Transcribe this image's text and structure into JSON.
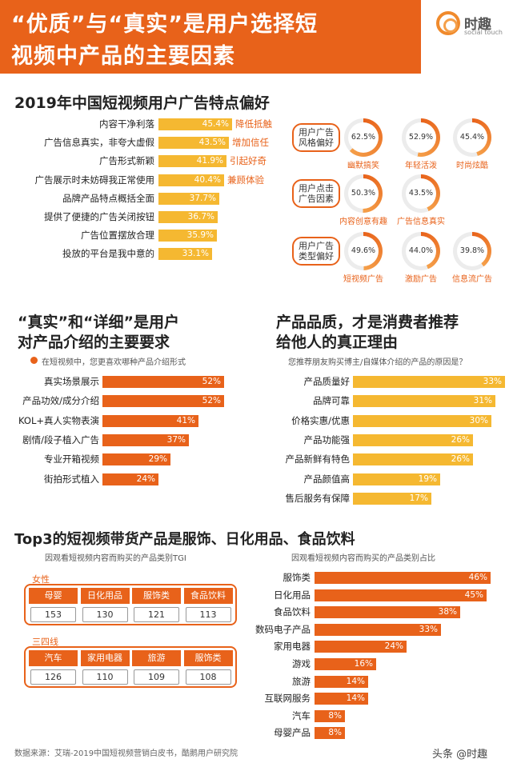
{
  "banner": {
    "line1": "“优质”与“真实”是用户选择短",
    "line2": "视频中产品的主要因素"
  },
  "logo": {
    "name": "时趣",
    "sub": "social touch"
  },
  "sec1": {
    "title": "2019年中国短视频用户广告特点偏好",
    "rows": [
      {
        "label": "内容干净利落",
        "value": 45.4,
        "text": "45.4%",
        "tag": "降低抵触"
      },
      {
        "label": "广告信息真实，非夸大虚假",
        "value": 43.5,
        "text": "43.5%",
        "tag": "增加信任"
      },
      {
        "label": "广告形式新颖",
        "value": 41.9,
        "text": "41.9%",
        "tag": "引起好奇"
      },
      {
        "label": "广告展示时未妨碍我正常使用",
        "value": 40.4,
        "text": "40.4%",
        "tag": "兼顾体验"
      },
      {
        "label": "品牌产品特点概括全面",
        "value": 37.7,
        "text": "37.7%",
        "tag": ""
      },
      {
        "label": "提供了便捷的广告关闭按钮",
        "value": 36.7,
        "text": "36.7%",
        "tag": ""
      },
      {
        "label": "广告位置摆放合理",
        "value": 35.9,
        "text": "35.9%",
        "tag": ""
      },
      {
        "label": "投放的平台是我中意的",
        "value": 33.1,
        "text": "33.1%",
        "tag": ""
      }
    ],
    "groups": [
      {
        "name": "用户广告风格偏好",
        "rings": [
          {
            "value": 62.5,
            "text": "62.5%",
            "label": "幽默搞笑"
          },
          {
            "value": 52.9,
            "text": "52.9%",
            "label": "年轻活泼"
          },
          {
            "value": 45.4,
            "text": "45.4%",
            "label": "时尚炫酷"
          }
        ]
      },
      {
        "name": "用户点击广告因素",
        "rings": [
          {
            "value": 50.3,
            "text": "50.3%",
            "label": "内容创意有趣"
          },
          {
            "value": 43.5,
            "text": "43.5%",
            "label": "广告信息真实"
          }
        ]
      },
      {
        "name": "用户广告类型偏好",
        "rings": [
          {
            "value": 49.6,
            "text": "49.6%",
            "label": "短视频广告"
          },
          {
            "value": 44.0,
            "text": "44.0%",
            "label": "激励广告"
          },
          {
            "value": 39.8,
            "text": "39.8%",
            "label": "信息流广告"
          }
        ]
      }
    ]
  },
  "sec2": {
    "title1": "“真实”和“详细”是用户",
    "title2": "对产品介绍的主要要求",
    "sub": "在短视频中，您更喜欢哪种产品介绍形式",
    "rows": [
      {
        "label": "真实场景展示",
        "value": 52,
        "text": "52%"
      },
      {
        "label": "产品功效/成分介绍",
        "value": 52,
        "text": "52%"
      },
      {
        "label": "KOL+真人实物表演",
        "value": 41,
        "text": "41%"
      },
      {
        "label": "剧情/段子植入广告",
        "value": 37,
        "text": "37%"
      },
      {
        "label": "专业开箱视频",
        "value": 29,
        "text": "29%"
      },
      {
        "label": "街拍形式植入",
        "value": 24,
        "text": "24%"
      }
    ]
  },
  "sec3": {
    "title1": "产品品质，才是消费者推荐",
    "title2": "给他人的真正理由",
    "sub": "您推荐朋友购买博主/自媒体介绍的产品的原因是？",
    "rows": [
      {
        "label": "产品质量好",
        "value": 33,
        "text": "33%"
      },
      {
        "label": "品牌可靠",
        "value": 31,
        "text": "31%"
      },
      {
        "label": "价格实惠/优惠",
        "value": 30,
        "text": "30%"
      },
      {
        "label": "产品功能强",
        "value": 26,
        "text": "26%"
      },
      {
        "label": "产品新鲜有特色",
        "value": 26,
        "text": "26%"
      },
      {
        "label": "产品颜值高",
        "value": 19,
        "text": "19%"
      },
      {
        "label": "售后服务有保障",
        "value": 17,
        "text": "17%"
      }
    ]
  },
  "sec4": {
    "title": "Top3的短视频带货产品是服饰、日化用品、食品饮料",
    "left_sub": "因观看短视频内容而购买的产品类别TGI",
    "right_sub": "因观看短视频内容而购买的产品类别占比",
    "female": {
      "label": "女性",
      "cats": [
        "母婴",
        "日化用品",
        "服饰类",
        "食品饮料"
      ],
      "vals": [
        "153",
        "130",
        "121",
        "113"
      ]
    },
    "tier": {
      "label": "三四线",
      "cats": [
        "汽车",
        "家用电器",
        "旅游",
        "服饰类"
      ],
      "vals": [
        "126",
        "110",
        "109",
        "108"
      ]
    },
    "rows": [
      {
        "label": "服饰类",
        "value": 46,
        "text": "46%"
      },
      {
        "label": "日化用品",
        "value": 45,
        "text": "45%"
      },
      {
        "label": "食品饮料",
        "value": 38,
        "text": "38%"
      },
      {
        "label": "数码电子产品",
        "value": 33,
        "text": "33%"
      },
      {
        "label": "家用电器",
        "value": 24,
        "text": "24%"
      },
      {
        "label": "游戏",
        "value": 16,
        "text": "16%"
      },
      {
        "label": "旅游",
        "value": 14,
        "text": "14%"
      },
      {
        "label": "互联网服务",
        "value": 14,
        "text": "14%"
      },
      {
        "label": "汽车",
        "value": 8,
        "text": "8%"
      },
      {
        "label": "母婴产品",
        "value": 8,
        "text": "8%"
      }
    ]
  },
  "footer": {
    "source": "数据来源：艾瑞-2019中国短视频营销白皮书，酷鹅用户研究院",
    "watermark": "头条 @时趣"
  },
  "chart_data": [
    {
      "type": "bar",
      "title": "2019年中国短视频用户广告特点偏好",
      "categories": [
        "内容干净利落",
        "广告信息真实，非夸大虚假",
        "广告形式新颖",
        "广告展示时未妨碍我正常使用",
        "品牌产品特点概括全面",
        "提供了便捷的广告关闭按钮",
        "广告位置摆放合理",
        "投放的平台是我中意的"
      ],
      "values": [
        45.4,
        43.5,
        41.9,
        40.4,
        37.7,
        36.7,
        35.9,
        33.1
      ]
    },
    {
      "type": "pie",
      "title": "用户广告风格偏好",
      "categories": [
        "幽默搞笑",
        "年轻活泼",
        "时尚炫酷"
      ],
      "values": [
        62.5,
        52.9,
        45.4
      ]
    },
    {
      "type": "pie",
      "title": "用户点击广告因素",
      "categories": [
        "内容创意有趣",
        "广告信息真实"
      ],
      "values": [
        50.3,
        43.5
      ]
    },
    {
      "type": "pie",
      "title": "用户广告类型偏好",
      "categories": [
        "短视频广告",
        "激励广告",
        "信息流广告"
      ],
      "values": [
        49.6,
        44.0,
        39.8
      ]
    },
    {
      "type": "bar",
      "title": "在短视频中，您更喜欢哪种产品介绍形式",
      "categories": [
        "真实场景展示",
        "产品功效/成分介绍",
        "KOL+真人实物表演",
        "剧情/段子植入广告",
        "专业开箱视频",
        "街拍形式植入"
      ],
      "values": [
        52,
        52,
        41,
        37,
        29,
        24
      ]
    },
    {
      "type": "bar",
      "title": "您推荐朋友购买博主/自媒体介绍的产品的原因是？",
      "categories": [
        "产品质量好",
        "品牌可靠",
        "价格实惠/优惠",
        "产品功能强",
        "产品新鲜有特色",
        "产品颜值高",
        "售后服务有保障"
      ],
      "values": [
        33,
        31,
        30,
        26,
        26,
        19,
        17
      ]
    },
    {
      "type": "table",
      "title": "因观看短视频内容而购买的产品类别TGI",
      "series": [
        {
          "name": "女性",
          "categories": [
            "母婴",
            "日化用品",
            "服饰类",
            "食品饮料"
          ],
          "values": [
            153,
            130,
            121,
            113
          ]
        },
        {
          "name": "三四线",
          "categories": [
            "汽车",
            "家用电器",
            "旅游",
            "服饰类"
          ],
          "values": [
            126,
            110,
            109,
            108
          ]
        }
      ]
    },
    {
      "type": "bar",
      "title": "因观看短视频内容而购买的产品类别占比",
      "categories": [
        "服饰类",
        "日化用品",
        "食品饮料",
        "数码电子产品",
        "家用电器",
        "游戏",
        "旅游",
        "互联网服务",
        "汽车",
        "母婴产品"
      ],
      "values": [
        46,
        45,
        38,
        33,
        24,
        16,
        14,
        14,
        8,
        8
      ]
    }
  ],
  "colors": {
    "orange": "#e8621a",
    "yellow": "#f5b831",
    "ring_track": "#ececec"
  }
}
